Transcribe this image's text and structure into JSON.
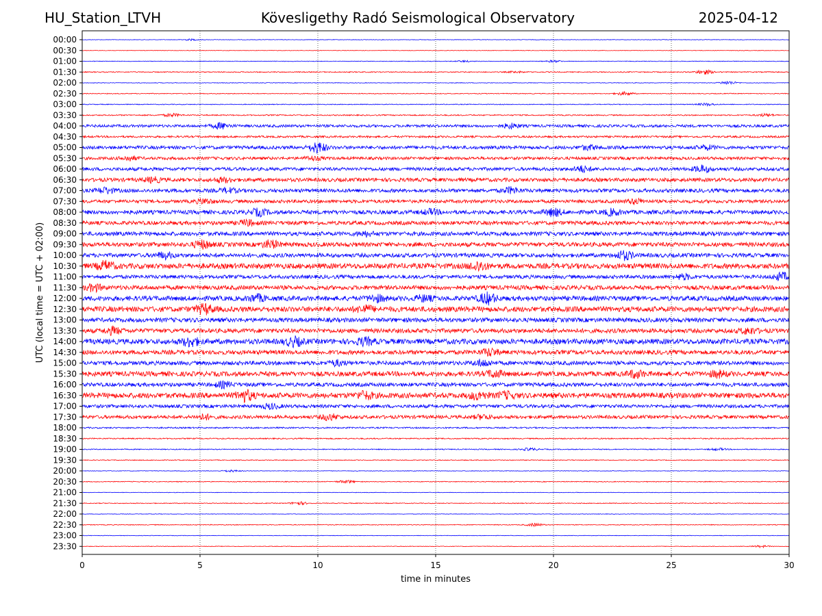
{
  "header": {
    "station": "HU_Station_LTVH",
    "title": "Kövesligethy Radó Seismological Observatory",
    "date": "2025-04-12"
  },
  "chart_data": {
    "type": "line",
    "xlabel": "time in minutes",
    "ylabel": "UTC (local time = UTC + 02:00)",
    "xlim": [
      0,
      30
    ],
    "x_ticks": [
      "0",
      "5",
      "10",
      "15",
      "20",
      "25",
      "30"
    ],
    "x_tick_values": [
      0,
      5,
      10,
      15,
      20,
      25,
      30
    ],
    "grid": "vertical dotted at x ticks",
    "colors": {
      "even_rows": "#0000ff",
      "odd_rows": "#ff0000"
    },
    "rows": [
      {
        "label": "00:00",
        "amplitude": 0.05,
        "bursts": [
          [
            4.6,
            0.15
          ]
        ]
      },
      {
        "label": "00:30",
        "amplitude": 0.05,
        "bursts": []
      },
      {
        "label": "01:00",
        "amplitude": 0.06,
        "bursts": [
          [
            20.0,
            0.2
          ],
          [
            16.2,
            0.15
          ]
        ]
      },
      {
        "label": "01:30",
        "amplitude": 0.1,
        "bursts": [
          [
            26.4,
            0.45
          ],
          [
            18.4,
            0.15
          ]
        ]
      },
      {
        "label": "02:00",
        "amplitude": 0.06,
        "bursts": [
          [
            27.4,
            0.35
          ]
        ]
      },
      {
        "label": "02:30",
        "amplitude": 0.08,
        "bursts": [
          [
            23.0,
            0.35
          ]
        ]
      },
      {
        "label": "03:00",
        "amplitude": 0.08,
        "bursts": [
          [
            26.5,
            0.25
          ]
        ]
      },
      {
        "label": "03:30",
        "amplitude": 0.12,
        "bursts": [
          [
            3.8,
            0.3
          ],
          [
            29.0,
            0.25
          ]
        ]
      },
      {
        "label": "04:00",
        "amplitude": 0.28,
        "bursts": [
          [
            5.9,
            0.55
          ],
          [
            18.2,
            0.45
          ]
        ]
      },
      {
        "label": "04:30",
        "amplitude": 0.2,
        "bursts": []
      },
      {
        "label": "05:00",
        "amplitude": 0.35,
        "bursts": [
          [
            10.0,
            1.0
          ],
          [
            21.5,
            0.4
          ],
          [
            26.5,
            0.35
          ]
        ]
      },
      {
        "label": "05:30",
        "amplitude": 0.3,
        "bursts": [
          [
            2.0,
            0.4
          ],
          [
            9.8,
            0.35
          ]
        ]
      },
      {
        "label": "06:00",
        "amplitude": 0.35,
        "bursts": [
          [
            21.2,
            0.55
          ],
          [
            26.3,
            0.6
          ]
        ]
      },
      {
        "label": "06:30",
        "amplitude": 0.38,
        "bursts": [
          [
            3.0,
            0.45
          ],
          [
            6.0,
            0.4
          ]
        ]
      },
      {
        "label": "07:00",
        "amplitude": 0.38,
        "bursts": [
          [
            1.0,
            0.55
          ],
          [
            18.2,
            0.55
          ],
          [
            6.2,
            0.4
          ]
        ]
      },
      {
        "label": "07:30",
        "amplitude": 0.35,
        "bursts": [
          [
            5.2,
            0.45
          ],
          [
            23.5,
            0.45
          ]
        ]
      },
      {
        "label": "08:00",
        "amplitude": 0.42,
        "bursts": [
          [
            7.5,
            0.6
          ],
          [
            20.0,
            0.7
          ],
          [
            22.5,
            0.55
          ],
          [
            14.8,
            0.45
          ]
        ]
      },
      {
        "label": "08:30",
        "amplitude": 0.4,
        "bursts": [
          [
            7.0,
            0.5
          ]
        ]
      },
      {
        "label": "09:00",
        "amplitude": 0.42,
        "bursts": [
          [
            12.0,
            0.4
          ]
        ]
      },
      {
        "label": "09:30",
        "amplitude": 0.45,
        "bursts": [
          [
            5.1,
            0.7
          ],
          [
            8.0,
            0.7
          ]
        ]
      },
      {
        "label": "10:00",
        "amplitude": 0.42,
        "bursts": [
          [
            3.5,
            0.55
          ],
          [
            23.0,
            0.8
          ]
        ]
      },
      {
        "label": "10:30",
        "amplitude": 0.55,
        "bursts": [
          [
            1.0,
            0.8
          ],
          [
            16.8,
            0.85
          ]
        ]
      },
      {
        "label": "11:00",
        "amplitude": 0.38,
        "bursts": [
          [
            29.7,
            0.7
          ],
          [
            25.5,
            0.45
          ]
        ]
      },
      {
        "label": "11:30",
        "amplitude": 0.45,
        "bursts": [
          [
            0.5,
            0.6
          ]
        ]
      },
      {
        "label": "12:00",
        "amplitude": 0.5,
        "bursts": [
          [
            17.2,
            1.0
          ],
          [
            7.4,
            0.6
          ],
          [
            12.5,
            0.55
          ],
          [
            14.5,
            0.5
          ]
        ]
      },
      {
        "label": "12:30",
        "amplitude": 0.55,
        "bursts": [
          [
            5.2,
            0.85
          ],
          [
            12.0,
            0.6
          ]
        ]
      },
      {
        "label": "13:00",
        "amplitude": 0.45,
        "bursts": []
      },
      {
        "label": "13:30",
        "amplitude": 0.45,
        "bursts": [
          [
            1.3,
            0.6
          ],
          [
            28.3,
            0.55
          ]
        ]
      },
      {
        "label": "14:00",
        "amplitude": 0.55,
        "bursts": [
          [
            4.6,
            0.8
          ],
          [
            9.0,
            0.75
          ],
          [
            12.0,
            0.6
          ]
        ]
      },
      {
        "label": "14:30",
        "amplitude": 0.45,
        "bursts": [
          [
            17.3,
            0.65
          ]
        ]
      },
      {
        "label": "15:00",
        "amplitude": 0.42,
        "bursts": [
          [
            17.0,
            0.6
          ],
          [
            10.8,
            0.45
          ]
        ]
      },
      {
        "label": "15:30",
        "amplitude": 0.5,
        "bursts": [
          [
            17.5,
            0.6
          ],
          [
            23.5,
            0.65
          ],
          [
            27.0,
            0.55
          ]
        ]
      },
      {
        "label": "16:00",
        "amplitude": 0.4,
        "bursts": [
          [
            6.0,
            0.5
          ]
        ]
      },
      {
        "label": "16:30",
        "amplitude": 0.55,
        "bursts": [
          [
            6.9,
            1.0
          ],
          [
            12.0,
            0.65
          ],
          [
            16.8,
            0.65
          ],
          [
            18.0,
            0.55
          ]
        ]
      },
      {
        "label": "17:00",
        "amplitude": 0.35,
        "bursts": [
          [
            8.0,
            0.45
          ]
        ]
      },
      {
        "label": "17:30",
        "amplitude": 0.35,
        "bursts": [
          [
            10.5,
            0.55
          ],
          [
            5.2,
            0.45
          ],
          [
            17.0,
            0.4
          ]
        ]
      },
      {
        "label": "18:00",
        "amplitude": 0.15,
        "bursts": []
      },
      {
        "label": "18:30",
        "amplitude": 0.12,
        "bursts": []
      },
      {
        "label": "19:00",
        "amplitude": 0.1,
        "bursts": [
          [
            19.0,
            0.25
          ],
          [
            27.0,
            0.2
          ]
        ]
      },
      {
        "label": "19:30",
        "amplitude": 0.08,
        "bursts": []
      },
      {
        "label": "20:00",
        "amplitude": 0.06,
        "bursts": [
          [
            6.3,
            0.2
          ]
        ]
      },
      {
        "label": "20:30",
        "amplitude": 0.08,
        "bursts": [
          [
            11.2,
            0.3
          ]
        ]
      },
      {
        "label": "21:00",
        "amplitude": 0.05,
        "bursts": []
      },
      {
        "label": "21:30",
        "amplitude": 0.08,
        "bursts": [
          [
            9.2,
            0.3
          ]
        ]
      },
      {
        "label": "22:00",
        "amplitude": 0.05,
        "bursts": []
      },
      {
        "label": "22:30",
        "amplitude": 0.08,
        "bursts": [
          [
            19.2,
            0.3
          ]
        ]
      },
      {
        "label": "23:00",
        "amplitude": 0.05,
        "bursts": []
      },
      {
        "label": "23:30",
        "amplitude": 0.06,
        "bursts": [
          [
            28.8,
            0.2
          ]
        ]
      }
    ]
  }
}
